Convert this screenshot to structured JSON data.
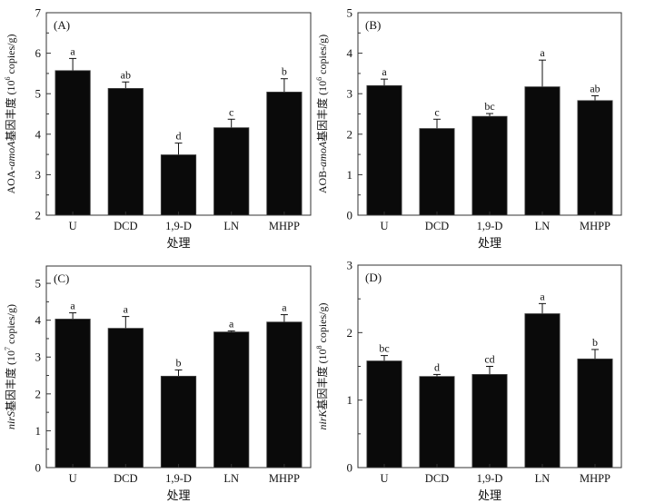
{
  "chart_data": [
    {
      "type": "bar",
      "panel_label": "(A)",
      "categories": [
        "U",
        "DCD",
        "1,9-D",
        "LN",
        "MHPP"
      ],
      "values": [
        5.57,
        5.13,
        3.49,
        4.16,
        5.04
      ],
      "error_upper": [
        5.87,
        5.29,
        3.78,
        4.37,
        5.37
      ],
      "significance": [
        "a",
        "ab",
        "d",
        "c",
        "b"
      ],
      "xlabel": "处理",
      "ylabel": {
        "prefix": "AOA-",
        "italic": "amoA",
        "mid": "基因丰度 (10",
        "sup": "6",
        "suffix": " copies/g)"
      },
      "ylim": [
        2,
        7
      ],
      "yticks": [
        2,
        3,
        4,
        5,
        6,
        7
      ]
    },
    {
      "type": "bar",
      "panel_label": "(B)",
      "categories": [
        "U",
        "DCD",
        "1,9-D",
        "LN",
        "MHPP"
      ],
      "values": [
        3.2,
        2.14,
        2.44,
        3.17,
        2.83
      ],
      "error_upper": [
        3.36,
        2.37,
        2.51,
        3.83,
        2.95
      ],
      "significance": [
        "a",
        "c",
        "bc",
        "a",
        "ab"
      ],
      "xlabel": "处理",
      "ylabel": {
        "prefix": "AOB-",
        "italic": "amoA",
        "mid": "基因丰度 (10",
        "sup": "6",
        "suffix": " copies/g)"
      },
      "ylim": [
        0,
        5
      ],
      "yticks": [
        0,
        1,
        2,
        3,
        4,
        5
      ]
    },
    {
      "type": "bar",
      "panel_label": "(C)",
      "categories": [
        "U",
        "DCD",
        "1,9-D",
        "LN",
        "MHPP"
      ],
      "values": [
        4.03,
        3.78,
        2.48,
        3.68,
        3.95
      ],
      "error_upper": [
        4.2,
        4.1,
        2.65,
        3.71,
        4.15
      ],
      "significance": [
        "a",
        "a",
        "b",
        "a",
        "a"
      ],
      "xlabel": "处理",
      "ylabel": {
        "prefix": "",
        "italic": "nirS",
        "mid": "基因丰度 (10",
        "sup": "7",
        "suffix": " copies/g)"
      },
      "ylim": [
        0,
        5.47
      ],
      "yticks": [
        0,
        1,
        2,
        3,
        4,
        5
      ]
    },
    {
      "type": "bar",
      "panel_label": "(D)",
      "categories": [
        "U",
        "DCD",
        "1,9-D",
        "LN",
        "MHPP"
      ],
      "values": [
        1.58,
        1.35,
        1.38,
        2.28,
        1.61
      ],
      "error_upper": [
        1.66,
        1.38,
        1.5,
        2.43,
        1.75
      ],
      "significance": [
        "bc",
        "d",
        "cd",
        "a",
        "b"
      ],
      "xlabel": "处理",
      "ylabel": {
        "prefix": "",
        "italic": "nirK",
        "mid": "基因丰度 (10",
        "sup": "8",
        "suffix": " copies/g)"
      },
      "ylim": [
        0,
        3
      ],
      "yticks": [
        0,
        1,
        2,
        3
      ]
    }
  ]
}
